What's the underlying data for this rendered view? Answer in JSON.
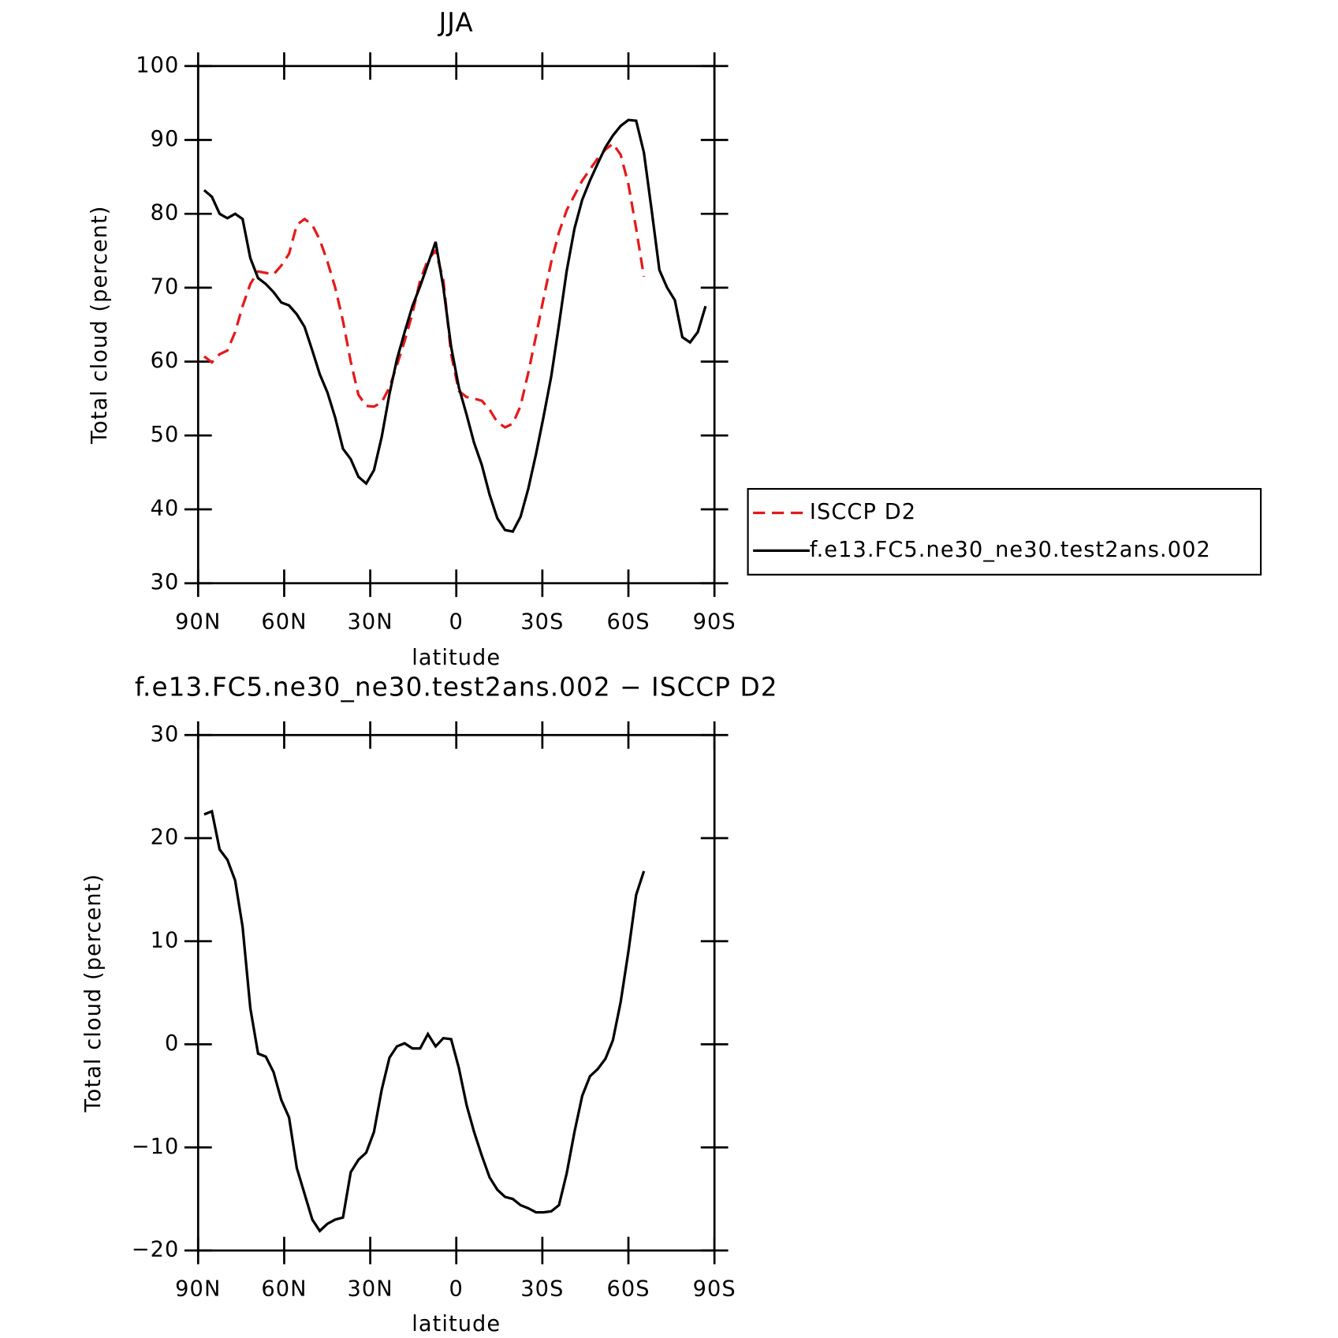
{
  "chart_data": [
    {
      "type": "line",
      "title": "JJA",
      "xlabel": "latitude",
      "ylabel": "Total cloud (percent)",
      "x": [
        87.9,
        85.2,
        82.5,
        79.8,
        77.1,
        74.5,
        71.8,
        69.1,
        66.4,
        63.7,
        61.0,
        58.3,
        55.6,
        52.9,
        50.2,
        47.6,
        44.9,
        42.2,
        39.5,
        36.8,
        34.1,
        31.4,
        28.7,
        26.0,
        23.3,
        20.7,
        18.0,
        15.3,
        12.6,
        9.9,
        7.2,
        4.5,
        1.8,
        -0.9,
        -3.6,
        -6.2,
        -8.9,
        -11.6,
        -14.3,
        -17.0,
        -19.7,
        -22.4,
        -25.1,
        -27.8,
        -30.4,
        -33.1,
        -35.8,
        -38.5,
        -41.2,
        -43.9,
        -46.6,
        -49.3,
        -52.0,
        -54.6,
        -57.3,
        -60.0,
        -62.7,
        -65.4,
        -68.1,
        -70.8,
        -73.5,
        -76.2,
        -78.8,
        -81.5,
        -84.2,
        -86.9
      ],
      "series": [
        {
          "name": "ISCCP D2",
          "color": "#e31a1c",
          "line_style": "dashed",
          "values": [
            60.7,
            59.9,
            61.0,
            61.5,
            64.0,
            67.5,
            70.5,
            72.2,
            72.0,
            71.8,
            73.0,
            74.6,
            78.5,
            79.3,
            78.5,
            76.5,
            73.5,
            70.0,
            65.5,
            60.0,
            55.5,
            54.0,
            53.9,
            54.5,
            56.5,
            59.5,
            62.8,
            66.5,
            71.0,
            73.8,
            75.0,
            71.0,
            61.0,
            56.0,
            55.2,
            55.0,
            54.7,
            53.5,
            51.8,
            51.1,
            51.6,
            54.0,
            58.5,
            63.5,
            68.5,
            73.5,
            77.5,
            80.5,
            82.5,
            84.5,
            86.0,
            87.5,
            88.7,
            89.5,
            88.0,
            84.0,
            78.0,
            71.5,
            null,
            null,
            null,
            null,
            null,
            null,
            null,
            null
          ]
        },
        {
          "name": "f.e13.FC5.ne30_ne30.test2ans.002",
          "color": "#000000",
          "line_style": "solid",
          "values": [
            83.2,
            82.3,
            80.0,
            79.4,
            80.0,
            79.3,
            74.0,
            71.3,
            70.5,
            69.4,
            68.0,
            67.6,
            66.4,
            64.7,
            61.5,
            58.3,
            55.8,
            52.4,
            48.2,
            46.8,
            44.4,
            43.5,
            45.3,
            49.8,
            55.6,
            60.3,
            64.0,
            67.5,
            70.2,
            73.2,
            76.2,
            70.0,
            62.0,
            56.5,
            52.8,
            49.0,
            46.0,
            42.0,
            38.8,
            37.2,
            37.0,
            39.0,
            42.8,
            47.5,
            52.5,
            58.0,
            65.0,
            72.3,
            78.0,
            81.9,
            84.5,
            86.8,
            89.0,
            90.6,
            91.9,
            92.7,
            92.6,
            88.3,
            80.5,
            72.4,
            70.0,
            68.3,
            63.3,
            62.6,
            64.0,
            67.5
          ]
        }
      ],
      "xlim": [
        90,
        -90
      ],
      "xticks": [
        {
          "value": 90,
          "label": "90N"
        },
        {
          "value": 60,
          "label": "60N"
        },
        {
          "value": 30,
          "label": "30N"
        },
        0,
        {
          "value": -30,
          "label": "30S"
        },
        {
          "value": -60,
          "label": "60S"
        },
        {
          "value": -90,
          "label": "90S"
        }
      ],
      "ylim": [
        30,
        100
      ],
      "yticks": [
        30,
        40,
        50,
        60,
        70,
        80,
        90,
        100
      ],
      "grid": false,
      "legend": "outside right"
    },
    {
      "type": "line",
      "title": "f.e13.FC5.ne30_ne30.test2ans.002 − ISCCP D2",
      "xlabel": "latitude",
      "ylabel": "Total cloud (percent)",
      "x": [
        87.9,
        85.2,
        82.5,
        79.8,
        77.1,
        74.5,
        71.8,
        69.1,
        66.4,
        63.7,
        61.0,
        58.3,
        55.6,
        52.9,
        50.2,
        47.6,
        44.9,
        42.2,
        39.5,
        36.8,
        34.1,
        31.4,
        28.7,
        26.0,
        23.3,
        20.7,
        18.0,
        15.3,
        12.6,
        9.9,
        7.2,
        4.5,
        1.8,
        -0.9,
        -3.6,
        -6.2,
        -8.9,
        -11.6,
        -14.3,
        -17.0,
        -19.7,
        -22.4,
        -25.1,
        -27.8,
        -30.4,
        -33.1,
        -35.8,
        -38.5,
        -41.2,
        -43.9,
        -46.6,
        -49.3,
        -52.0,
        -54.6,
        -57.3,
        -60.0,
        -62.7,
        -65.4
      ],
      "series": [
        {
          "color": "#000000",
          "line_style": "solid",
          "values": [
            22.3,
            22.6,
            18.9,
            17.9,
            15.9,
            11.4,
            3.5,
            -0.9,
            -1.2,
            -2.7,
            -5.4,
            -7.1,
            -12.0,
            -14.5,
            -17.0,
            -18.1,
            -17.4,
            -17.0,
            -16.8,
            -12.4,
            -11.2,
            -10.5,
            -8.5,
            -4.4,
            -1.3,
            -0.2,
            0.1,
            -0.4,
            -0.4,
            1.0,
            -0.2,
            0.6,
            0.5,
            -2.3,
            -5.9,
            -8.5,
            -10.8,
            -12.9,
            -14.1,
            -14.8,
            -15.0,
            -15.6,
            -15.9,
            -16.3,
            -16.3,
            -16.2,
            -15.6,
            -12.5,
            -8.5,
            -5.0,
            -3.1,
            -2.4,
            -1.4,
            0.4,
            4.1,
            9.0,
            14.5,
            16.8
          ]
        }
      ],
      "xlim": [
        90,
        -90
      ],
      "xticks": [
        {
          "value": 90,
          "label": "90N"
        },
        {
          "value": 60,
          "label": "60N"
        },
        {
          "value": 30,
          "label": "30N"
        },
        0,
        {
          "value": -30,
          "label": "30S"
        },
        {
          "value": -60,
          "label": "60S"
        },
        {
          "value": -90,
          "label": "90S"
        }
      ],
      "ylim": [
        -20,
        30
      ],
      "yticks": [
        {
          "value": -20,
          "label": "−20"
        },
        {
          "value": -10,
          "label": "−10"
        },
        0,
        10,
        20,
        30
      ],
      "grid": false
    }
  ]
}
